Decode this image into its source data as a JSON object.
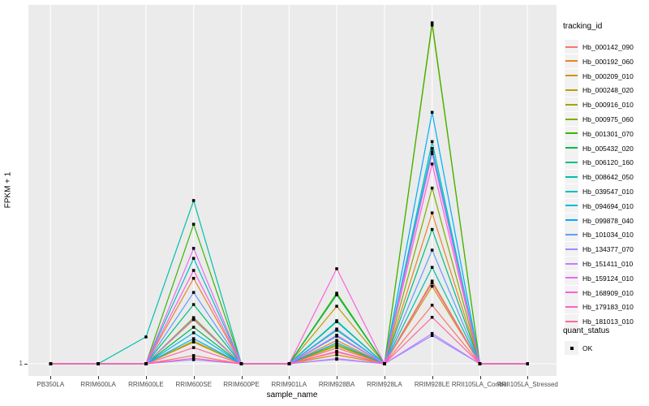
{
  "chart_data": {
    "type": "line",
    "title": "",
    "xlabel": "sample_name",
    "ylabel": "FPKM + 1",
    "y_ticks": [
      "1"
    ],
    "ylim": [
      1,
      100
    ],
    "grid": "major",
    "panel_background": "#EBEBEB",
    "grid_color": "#FFFFFF",
    "marker": "black-square",
    "marker_color": "#000000",
    "legend_position": "right",
    "legend_title": "tracking_id",
    "legend2_title": "quant_status",
    "legend2_items": [
      {
        "label": "OK",
        "marker": "black-square"
      }
    ],
    "categories": [
      "PB350LA",
      "RRIM600LA",
      "RRIM600LE",
      "RRIM600SE",
      "RRIM600PE",
      "RRIM901LA",
      "RRIM928BA",
      "RRIM928LA",
      "RRIM928LE",
      "RRII105LA_Control",
      "RRII105LA_Stressed"
    ],
    "series": [
      {
        "name": "Hb_000142_090",
        "color": "#F8766D",
        "values": [
          1,
          1,
          1,
          3.4,
          1,
          1,
          5.6,
          1,
          18,
          1,
          1
        ]
      },
      {
        "name": "Hb_000192_060",
        "color": "#E88526",
        "values": [
          1,
          1,
          1,
          25.8,
          1,
          1,
          7.8,
          1,
          44.8,
          1,
          1
        ]
      },
      {
        "name": "Hb_000209_010",
        "color": "#D39200",
        "values": [
          1,
          1,
          1,
          7.3,
          1,
          1,
          3.6,
          1,
          23.5,
          1,
          1
        ]
      },
      {
        "name": "Hb_000248_020",
        "color": "#BC9D00",
        "values": [
          1,
          1,
          1,
          13.8,
          1,
          1,
          17.7,
          1,
          25,
          1,
          1
        ]
      },
      {
        "name": "Hb_000916_010",
        "color": "#A3A500",
        "values": [
          1,
          1,
          1,
          7.6,
          1,
          1,
          6.2,
          1,
          99.3,
          1,
          1
        ]
      },
      {
        "name": "Hb_000975_060",
        "color": "#7CAE00",
        "values": [
          1,
          1,
          1,
          14.4,
          1,
          1,
          6.6,
          1,
          52,
          1,
          1
        ]
      },
      {
        "name": "Hb_001301_070",
        "color": "#39B600",
        "values": [
          1,
          1,
          1,
          41.5,
          1,
          1,
          21.5,
          1,
          100,
          1,
          1
        ]
      },
      {
        "name": "Hb_005432_020",
        "color": "#00BB4E",
        "values": [
          1,
          1,
          1,
          11.6,
          1,
          1,
          21,
          1,
          62.5,
          1,
          1
        ]
      },
      {
        "name": "Hb_006120_160",
        "color": "#00BF7D",
        "values": [
          1,
          1,
          1,
          18.2,
          1,
          1,
          13.2,
          1,
          40,
          1,
          1
        ]
      },
      {
        "name": "Hb_008642_050",
        "color": "#00C1A7",
        "values": [
          1,
          1,
          8.8,
          48.4,
          1,
          1,
          10.7,
          1,
          29,
          1,
          1
        ]
      },
      {
        "name": "Hb_039547_010",
        "color": "#00BFC4",
        "values": [
          1,
          1,
          1,
          31.6,
          1,
          1,
          13.5,
          1,
          65.5,
          1,
          1
        ]
      },
      {
        "name": "Hb_094694_010",
        "color": "#00B8E5",
        "values": [
          1,
          1,
          1,
          10,
          1,
          1,
          9,
          1,
          63.5,
          1,
          1
        ]
      },
      {
        "name": "Hb_099878_040",
        "color": "#00ACFC",
        "values": [
          1,
          1,
          1,
          8.3,
          1,
          1,
          7.1,
          1,
          74,
          1,
          1
        ]
      },
      {
        "name": "Hb_101034_010",
        "color": "#619CFF",
        "values": [
          1,
          1,
          1,
          21.7,
          1,
          1,
          11.1,
          1,
          34,
          1,
          1
        ]
      },
      {
        "name": "Hb_134377_070",
        "color": "#9590FF",
        "values": [
          1,
          1,
          1,
          2.2,
          1,
          1,
          2.3,
          1,
          9.2,
          1,
          1
        ]
      },
      {
        "name": "Hb_151411_010",
        "color": "#C77CFF",
        "values": [
          1,
          1,
          1,
          14,
          1,
          1,
          2.5,
          1,
          9.8,
          1,
          1
        ]
      },
      {
        "name": "Hb_159124_010",
        "color": "#E76BF3",
        "values": [
          1,
          1,
          1,
          34.5,
          1,
          1,
          9.3,
          1,
          62,
          1,
          1
        ]
      },
      {
        "name": "Hb_168909_010",
        "color": "#FA62DB",
        "values": [
          1,
          1,
          1,
          28.1,
          1,
          1,
          28.6,
          1,
          59,
          1,
          1
        ]
      },
      {
        "name": "Hb_179183_010",
        "color": "#FF61C2",
        "values": [
          1,
          1,
          1,
          2.6,
          1,
          1,
          4.4,
          1,
          24.5,
          1,
          1
        ]
      },
      {
        "name": "Hb_181013_010",
        "color": "#FF689F",
        "values": [
          1,
          1,
          1,
          5.7,
          1,
          1,
          4.6,
          1,
          14.5,
          1,
          1
        ]
      }
    ]
  }
}
